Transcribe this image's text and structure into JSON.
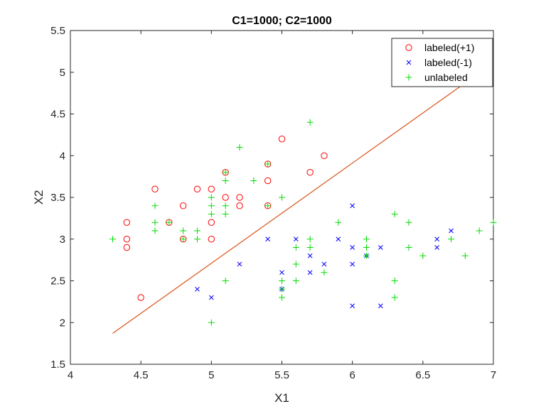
{
  "chart_data": {
    "type": "scatter",
    "title": "C1=1000; C2=1000",
    "xlabel": "X1",
    "ylabel": "X2",
    "xlim": [
      4,
      7
    ],
    "ylim": [
      1.5,
      5.5
    ],
    "xticks": [
      "4",
      "4.5",
      "5",
      "5.5",
      "6",
      "6.5",
      "7"
    ],
    "yticks": [
      "1.5",
      "2",
      "2.5",
      "3",
      "3.5",
      "4",
      "4.5",
      "5",
      "5.5"
    ],
    "grid": false,
    "legend_position": "top-right",
    "series": [
      {
        "name": "labeled(+1)",
        "marker": "circle",
        "color": "#ff0000",
        "points": [
          [
            4.4,
            3.2
          ],
          [
            4.4,
            3.0
          ],
          [
            4.4,
            2.9
          ],
          [
            4.5,
            2.3
          ],
          [
            4.6,
            3.6
          ],
          [
            4.7,
            3.2
          ],
          [
            4.8,
            3.4
          ],
          [
            4.8,
            3.0
          ],
          [
            4.9,
            3.6
          ],
          [
            5.0,
            3.6
          ],
          [
            5.0,
            3.2
          ],
          [
            5.0,
            3.0
          ],
          [
            5.1,
            3.8
          ],
          [
            5.1,
            3.5
          ],
          [
            5.2,
            3.5
          ],
          [
            5.2,
            3.4
          ],
          [
            5.4,
            3.9
          ],
          [
            5.4,
            3.7
          ],
          [
            5.4,
            3.4
          ],
          [
            5.5,
            4.2
          ],
          [
            5.7,
            3.8
          ],
          [
            5.8,
            4.0
          ]
        ]
      },
      {
        "name": "labeled(-1)",
        "marker": "x",
        "color": "#0000ff",
        "points": [
          [
            4.9,
            2.4
          ],
          [
            5.0,
            2.3
          ],
          [
            5.2,
            2.7
          ],
          [
            5.4,
            3.0
          ],
          [
            5.5,
            2.6
          ],
          [
            5.5,
            2.4
          ],
          [
            5.6,
            3.0
          ],
          [
            5.7,
            2.8
          ],
          [
            5.7,
            2.6
          ],
          [
            5.8,
            2.7
          ],
          [
            5.9,
            3.0
          ],
          [
            6.0,
            3.4
          ],
          [
            6.0,
            2.9
          ],
          [
            6.0,
            2.7
          ],
          [
            6.0,
            2.2
          ],
          [
            6.1,
            2.8
          ],
          [
            6.2,
            2.9
          ],
          [
            6.2,
            2.2
          ],
          [
            6.6,
            3.0
          ],
          [
            6.6,
            2.9
          ],
          [
            6.7,
            3.1
          ]
        ]
      },
      {
        "name": "unlabeled",
        "marker": "plus",
        "color": "#00dd00",
        "points": [
          [
            4.3,
            3.0
          ],
          [
            4.6,
            3.4
          ],
          [
            4.6,
            3.2
          ],
          [
            4.6,
            3.1
          ],
          [
            4.7,
            3.2
          ],
          [
            4.8,
            3.1
          ],
          [
            4.8,
            3.0
          ],
          [
            4.9,
            3.1
          ],
          [
            4.9,
            3.0
          ],
          [
            5.0,
            3.5
          ],
          [
            5.0,
            3.4
          ],
          [
            5.0,
            3.3
          ],
          [
            5.0,
            2.0
          ],
          [
            5.1,
            3.8
          ],
          [
            5.1,
            3.7
          ],
          [
            5.1,
            3.4
          ],
          [
            5.1,
            3.3
          ],
          [
            5.1,
            2.5
          ],
          [
            5.2,
            4.1
          ],
          [
            5.3,
            3.7
          ],
          [
            5.4,
            3.9
          ],
          [
            5.4,
            3.4
          ],
          [
            5.5,
            3.5
          ],
          [
            5.5,
            2.5
          ],
          [
            5.5,
            2.4
          ],
          [
            5.5,
            2.3
          ],
          [
            5.6,
            2.9
          ],
          [
            5.6,
            2.7
          ],
          [
            5.6,
            2.5
          ],
          [
            5.7,
            4.4
          ],
          [
            5.7,
            3.0
          ],
          [
            5.7,
            2.9
          ],
          [
            5.8,
            2.6
          ],
          [
            5.9,
            3.2
          ],
          [
            6.1,
            3.0
          ],
          [
            6.1,
            2.9
          ],
          [
            6.1,
            2.8
          ],
          [
            6.3,
            3.3
          ],
          [
            6.3,
            2.5
          ],
          [
            6.3,
            2.3
          ],
          [
            6.4,
            3.2
          ],
          [
            6.4,
            2.9
          ],
          [
            6.5,
            2.8
          ],
          [
            6.7,
            3.0
          ],
          [
            6.8,
            2.8
          ],
          [
            6.9,
            3.1
          ],
          [
            7.0,
            3.2
          ]
        ]
      }
    ],
    "lines": [
      {
        "name": "decision boundary",
        "color": "#d95319",
        "x": [
          4.3,
          6.99
        ],
        "y": [
          1.87,
          5.1
        ]
      }
    ]
  }
}
